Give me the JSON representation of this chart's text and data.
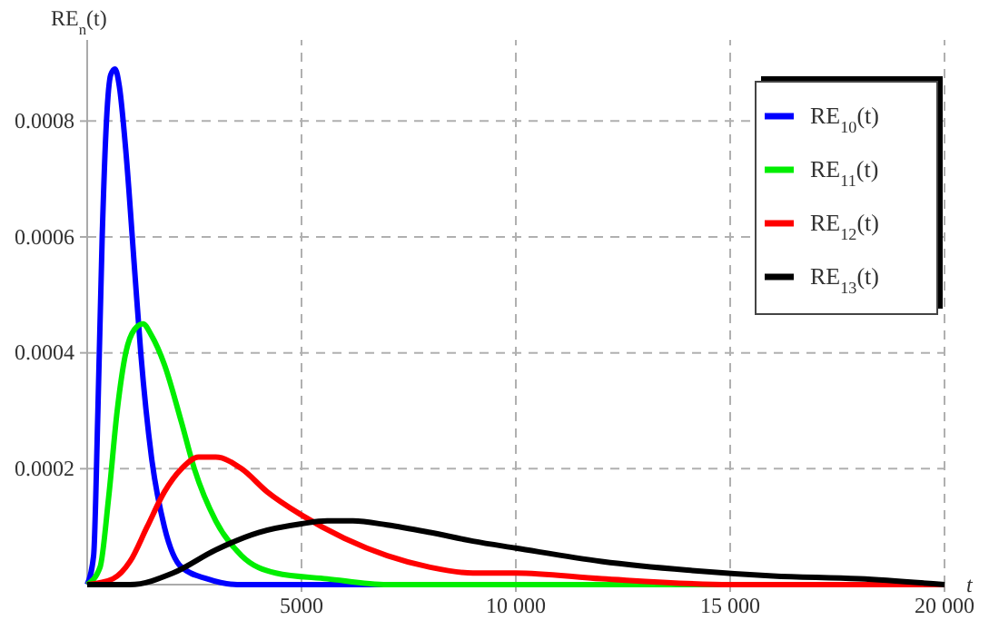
{
  "chart_data": {
    "type": "line",
    "xlabel": "t",
    "ylabel": "RE$_{n}$(t)",
    "xlim": [
      0,
      20000
    ],
    "ylim": [
      0,
      0.00094
    ],
    "xticks": [
      5000,
      {
        "value": 10000,
        "label": "10 000"
      },
      {
        "value": 15000,
        "label": "15 000"
      },
      {
        "value": 20000,
        "label": "20 000"
      }
    ],
    "yticks": [
      0.0002,
      0.0004,
      0.0006,
      0.0008
    ],
    "grid": true,
    "legend": "top right",
    "line_style": "solid",
    "marker": "none",
    "series": [
      {
        "name": "RE$_{10}$(t)",
        "color": "#0000ff",
        "x": [
          0,
          150,
          250,
          350,
          450,
          550,
          650,
          750,
          900,
          1100,
          1250,
          1500,
          1800,
          2200,
          2800,
          3500,
          20000
        ],
        "values": [
          0,
          5e-05,
          0.0003,
          0.0006,
          0.0008,
          0.00088,
          0.00089,
          0.00086,
          0.00075,
          0.00055,
          0.0004,
          0.00022,
          0.0001,
          3e-05,
          1e-05,
          0,
          0
        ]
      },
      {
        "name": "RE$_{11}$(t)",
        "color": "#00ee00",
        "x": [
          0,
          300,
          500,
          700,
          900,
          1100,
          1300,
          1500,
          1800,
          2200,
          2500,
          3000,
          3600,
          4400,
          5600,
          7000,
          9000,
          20000
        ],
        "values": [
          0,
          3e-05,
          0.00015,
          0.0003,
          0.0004,
          0.00044,
          0.00045,
          0.00043,
          0.00038,
          0.00028,
          0.0002,
          0.00011,
          5e-05,
          2e-05,
          1e-05,
          0,
          0,
          0
        ]
      },
      {
        "name": "RE$_{12}$(t)",
        "color": "#ff0000",
        "x": [
          0,
          600,
          1000,
          1400,
          1800,
          2200,
          2600,
          3000,
          3600,
          4200,
          5000,
          6000,
          7000,
          8000,
          9000,
          10000,
          12000,
          15000,
          20000
        ],
        "values": [
          0,
          1e-05,
          4e-05,
          0.0001,
          0.00016,
          0.0002,
          0.00022,
          0.00022,
          0.0002,
          0.00016,
          0.00012,
          8e-05,
          5e-05,
          3e-05,
          2e-05,
          2e-05,
          1e-05,
          0,
          0
        ]
      },
      {
        "name": "RE$_{13}$(t)",
        "color": "#000000",
        "x": [
          0,
          1000,
          2000,
          3000,
          4000,
          5000,
          5600,
          6200,
          7000,
          8000,
          9000,
          10000,
          12000,
          14000,
          16000,
          18000,
          20000
        ],
        "values": [
          0,
          0,
          2e-05,
          6e-05,
          9e-05,
          0.000105,
          0.00011,
          0.00011,
          0.000103,
          9e-05,
          7.5e-05,
          6.3e-05,
          4e-05,
          2.5e-05,
          1.5e-05,
          1e-05,
          0
        ]
      }
    ]
  }
}
